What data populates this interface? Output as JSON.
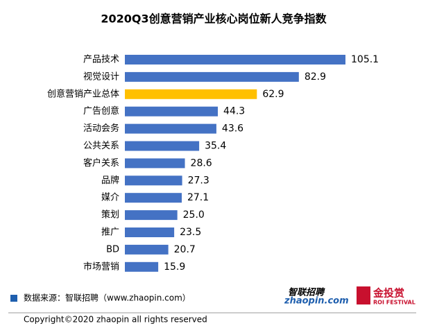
{
  "chart_data": {
    "type": "barh",
    "title": "2020Q3创意营销产业核心岗位新人竞争指数",
    "categories": [
      "产品技术",
      "视觉设计",
      "创意营销产业总体",
      "广告创意",
      "活动会务",
      "公共关系",
      "客户关系",
      "品牌",
      "媒介",
      "策划",
      "推广",
      "BD",
      "市场营销"
    ],
    "values": [
      105.1,
      82.9,
      62.9,
      44.3,
      43.6,
      35.4,
      28.6,
      27.3,
      27.1,
      25.0,
      23.5,
      20.7,
      15.9
    ],
    "value_labels": [
      "105.1",
      "82.9",
      "62.9",
      "44.3",
      "43.6",
      "35.4",
      "28.6",
      "27.3",
      "27.1",
      "25.0",
      "23.5",
      "20.7",
      "15.9"
    ],
    "colors": [
      "#4472c4",
      "#4472c4",
      "#ffc000",
      "#4472c4",
      "#4472c4",
      "#4472c4",
      "#4472c4",
      "#4472c4",
      "#4472c4",
      "#4472c4",
      "#4472c4",
      "#4472c4",
      "#4472c4"
    ]
  },
  "footer": {
    "source": "数据来源：智联招聘（www.zhaopin.com）",
    "copyright": "Copyright©2020 zhaopin all rights reserved"
  },
  "logos": {
    "zhaopin_cn": "智联招聘",
    "zhaopin_en": "zhaopin.com",
    "roi_cn": "金投赏",
    "roi_en": "ROI FESTIVAL"
  }
}
